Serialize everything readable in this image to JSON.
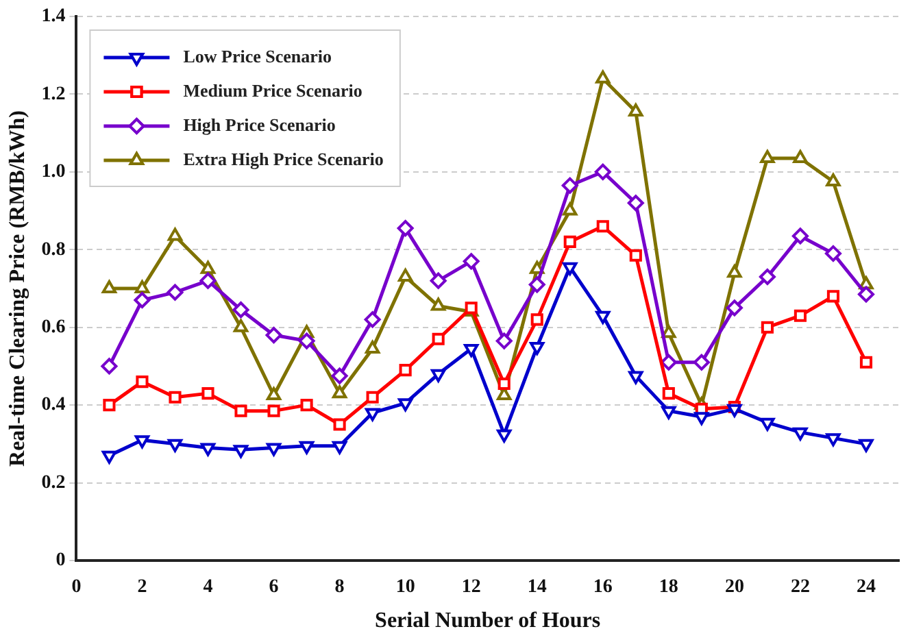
{
  "chart_data": {
    "type": "line",
    "xlabel": "Serial Number of Hours",
    "ylabel": "Real-time Clearing Price (RMB/kWh)",
    "x": [
      1,
      2,
      3,
      4,
      5,
      6,
      7,
      8,
      9,
      10,
      11,
      12,
      13,
      14,
      15,
      16,
      17,
      18,
      19,
      20,
      21,
      22,
      23,
      24
    ],
    "xlim": [
      0,
      25
    ],
    "xticks": [
      0,
      2,
      4,
      6,
      8,
      10,
      12,
      14,
      16,
      18,
      20,
      22,
      24
    ],
    "ylim": [
      0,
      1.4
    ],
    "yticks": [
      0,
      0.2,
      0.4,
      0.6,
      0.8,
      {
        "value": 1,
        "label": "1.0"
      },
      1.2,
      1.4
    ],
    "grid": "y",
    "legend": "top left",
    "line_style": "solid",
    "series": [
      {
        "name": "Low Price Scenario",
        "color": "#0000cc",
        "marker": "triangle-down",
        "values": [
          0.27,
          0.31,
          0.3,
          0.29,
          0.285,
          0.29,
          0.295,
          0.295,
          0.38,
          0.405,
          0.48,
          0.545,
          0.325,
          0.55,
          0.755,
          0.63,
          0.475,
          0.385,
          0.37,
          0.39,
          0.355,
          0.33,
          0.315,
          0.3
        ]
      },
      {
        "name": "Medium Price Scenario",
        "color": "#ff0000",
        "marker": "square",
        "values": [
          0.4,
          0.46,
          0.42,
          0.43,
          0.385,
          0.385,
          0.4,
          0.35,
          0.42,
          0.49,
          0.57,
          0.65,
          0.455,
          0.62,
          0.82,
          0.86,
          0.785,
          0.43,
          0.39,
          0.395,
          0.6,
          0.63,
          0.68,
          0.51
        ]
      },
      {
        "name": "High Price Scenario",
        "color": "#7700cc",
        "marker": "diamond",
        "values": [
          0.5,
          0.67,
          0.69,
          0.72,
          0.645,
          0.58,
          0.565,
          0.475,
          0.62,
          0.855,
          0.72,
          0.77,
          0.565,
          0.71,
          0.965,
          1.0,
          0.92,
          0.51,
          0.51,
          0.65,
          0.73,
          0.835,
          0.79,
          0.685
        ]
      },
      {
        "name": "Extra High Price Scenario",
        "color": "#7f7200",
        "marker": "triangle",
        "values": [
          0.7,
          0.7,
          0.835,
          0.75,
          0.6,
          0.425,
          0.585,
          0.43,
          0.545,
          0.73,
          0.655,
          0.64,
          0.425,
          0.75,
          0.9,
          1.24,
          1.155,
          0.585,
          0.4,
          0.74,
          1.035,
          1.035,
          0.975,
          0.71
        ]
      }
    ]
  }
}
